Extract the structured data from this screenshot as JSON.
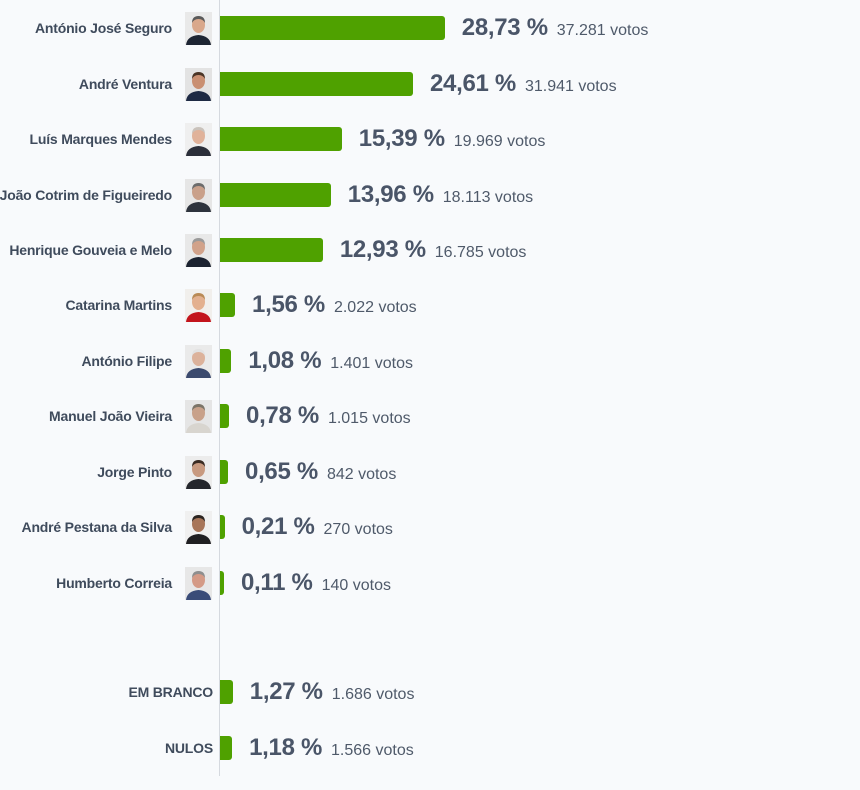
{
  "colors": {
    "bar": "#4fa100",
    "text": "#4a5568",
    "axis": "#d5d9df"
  },
  "chart_data": {
    "type": "bar",
    "orientation": "horizontal",
    "unit": "%",
    "votes_suffix": "votos",
    "categories": [
      "António José Seguro",
      "André Ventura",
      "Luís Marques Mendes",
      "João Cotrim de Figueiredo",
      "Henrique Gouveia e Melo",
      "Catarina Martins",
      "António Filipe",
      "Manuel João Vieira",
      "Jorge Pinto",
      "André Pestana da Silva",
      "Humberto Correia",
      "EM BRANCO",
      "NULOS"
    ],
    "values": [
      28.73,
      24.61,
      15.39,
      13.96,
      12.93,
      1.56,
      1.08,
      0.78,
      0.65,
      0.21,
      0.11,
      1.27,
      1.18
    ],
    "pct_labels": [
      "28,73 %",
      "24,61 %",
      "15,39 %",
      "13,96 %",
      "12,93 %",
      "1,56 %",
      "1,08 %",
      "0,78 %",
      "0,65 %",
      "0,21 %",
      "0,11 %",
      "1,27 %",
      "1,18 %"
    ],
    "votes_labels": [
      "37.281 votos",
      "31.941 votos",
      "19.969 votos",
      "18.113 votos",
      "16.785 votos",
      "2.022 votos",
      "1.401 votos",
      "1.015 votos",
      "842 votos",
      "270 votos",
      "140 votos",
      "1.686 votos",
      "1.566 votos"
    ],
    "has_photo": [
      true,
      true,
      true,
      true,
      true,
      true,
      true,
      true,
      true,
      true,
      true,
      false,
      false
    ],
    "photo_colors": [
      {
        "bg": "#e9e9e9",
        "skin": "#d9a88c",
        "hair": "#5a5a5a",
        "suit": "#1d2533"
      },
      {
        "bg": "#e3e3e3",
        "skin": "#c98f72",
        "hair": "#4a3426",
        "suit": "#1e2a44"
      },
      {
        "bg": "#efefef",
        "skin": "#e0b29a",
        "hair": "#c9c2bb",
        "suit": "#2b2f3a"
      },
      {
        "bg": "#e6e6e6",
        "skin": "#c9a08a",
        "hair": "#6c6c6c",
        "suit": "#2d333d"
      },
      {
        "bg": "#e8e8e8",
        "skin": "#d1a28a",
        "hair": "#9a9a9a",
        "suit": "#1b2230"
      },
      {
        "bg": "#f1efec",
        "skin": "#e3b08f",
        "hair": "#b98a55",
        "suit": "#c3141c"
      },
      {
        "bg": "#eaeaea",
        "skin": "#dcb29b",
        "hair": "#e2e2e2",
        "suit": "#3b4a6e"
      },
      {
        "bg": "#e5e5e5",
        "skin": "#c8a18a",
        "hair": "#7b7468",
        "suit": "#d8d5cf"
      },
      {
        "bg": "#ececec",
        "skin": "#c89a80",
        "hair": "#3a2b22",
        "suit": "#24262c"
      },
      {
        "bg": "#f0f0f0",
        "skin": "#a8765a",
        "hair": "#2b2420",
        "suit": "#1f1f22"
      },
      {
        "bg": "#e7e7e7",
        "skin": "#d49a86",
        "hair": "#8e8e8e",
        "suit": "#3a4c78"
      }
    ]
  }
}
